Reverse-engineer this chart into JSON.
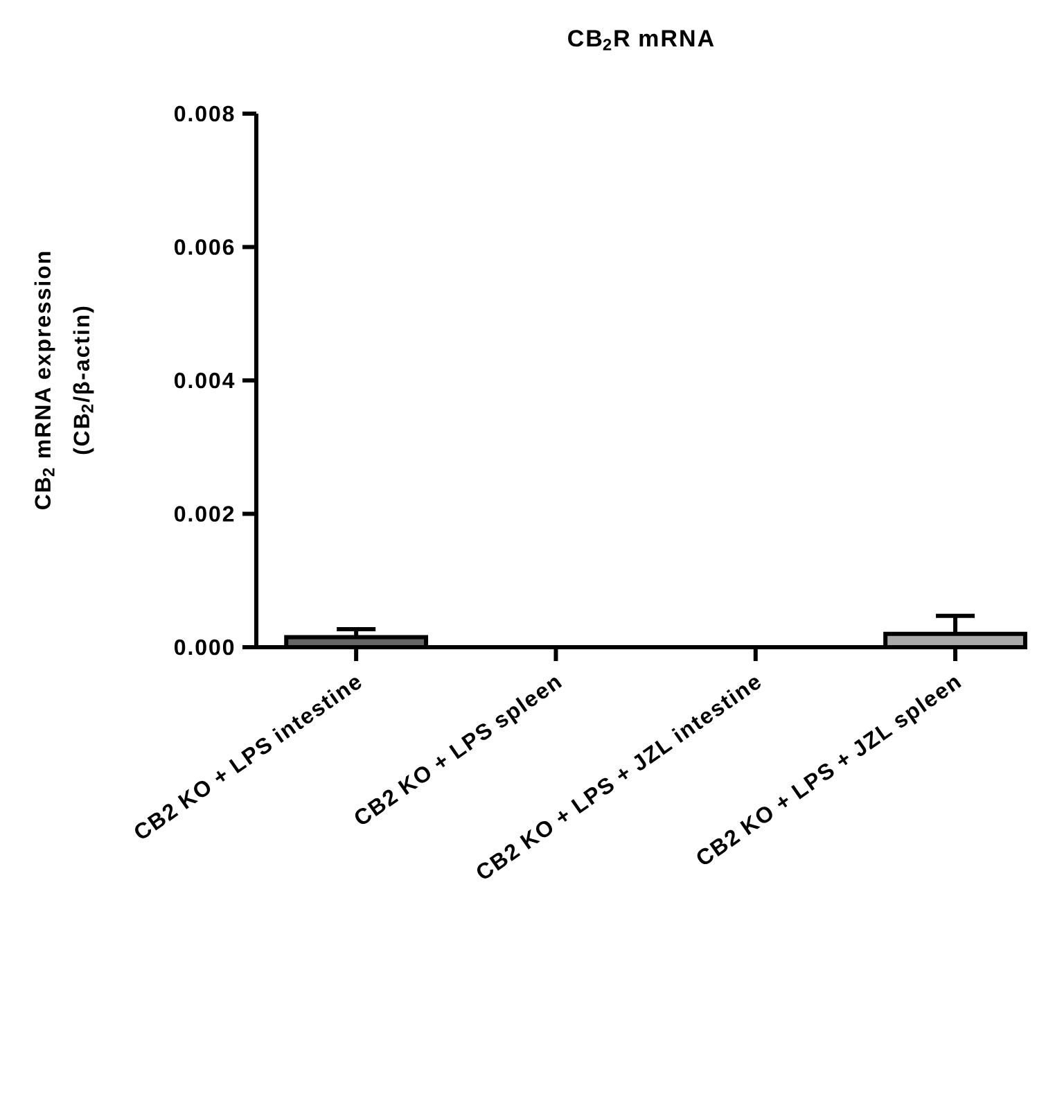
{
  "chart_data": {
    "type": "bar",
    "title": "CB$_{2}$R mRNA",
    "ylabel": "CB$_{2}$ mRNA expression (CB$_{2}$/β-actin)",
    "categories": [
      "CB2 KO + LPS intestine",
      "CB2 KO + LPS spleen",
      "CB2 KO + LPS + JZL intestine",
      "CB2 KO + LPS + JZL spleen"
    ],
    "values": [
      0.00015,
      0,
      0,
      0.0002
    ],
    "errors": [
      [
        0.00015,
        0.00027
      ],
      null,
      null,
      [
        0.0002,
        0.00047
      ]
    ],
    "colors": [
      "#666666",
      "#000000",
      "#000000",
      "#aaaaaa"
    ],
    "ylim": [
      0,
      0.008
    ],
    "yticks": [
      {
        "value": 0,
        "label": "0.000"
      },
      {
        "value": 0.002,
        "label": "0.002"
      },
      {
        "value": 0.004,
        "label": "0.004"
      },
      {
        "value": 0.006,
        "label": "0.006"
      },
      {
        "value": 0.008,
        "label": "0.008"
      }
    ],
    "grid": false
  }
}
